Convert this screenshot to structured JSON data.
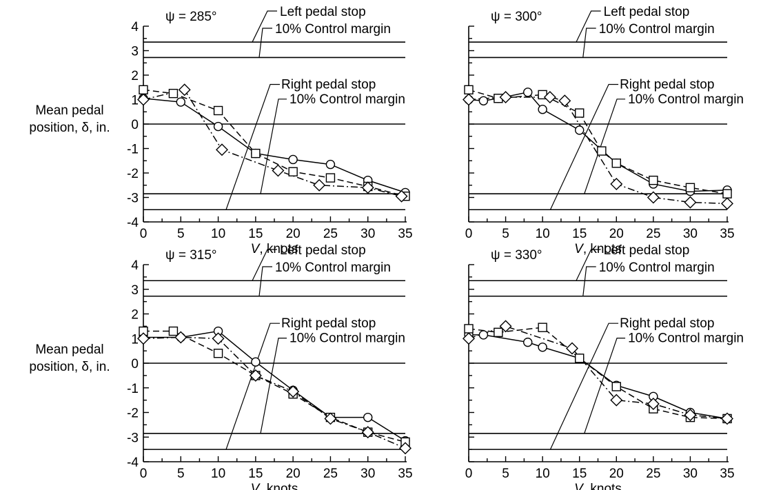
{
  "chart_data": [
    {
      "type": "line",
      "panel_title": "ψ = 285°",
      "xlabel": "V, knots",
      "ylabel": "Mean pedal position, δ, in.",
      "xlim": [
        0,
        35
      ],
      "ylim": [
        -4,
        4
      ],
      "xticks": [
        "0",
        "5",
        "10",
        "15",
        "20",
        "25",
        "30",
        "35"
      ],
      "yticks": [
        "-4",
        "-3",
        "-2",
        "-1",
        "0",
        "1",
        "2",
        "3",
        "4"
      ],
      "reference_lines": [
        {
          "label": "Left pedal stop",
          "y": 3.35
        },
        {
          "label": "10% Control margin",
          "y": 2.72
        },
        {
          "label": "",
          "y": 0
        },
        {
          "label": "Right pedal stop",
          "y": -3.5
        },
        {
          "label": "10% Control margin",
          "y": -2.85
        }
      ],
      "series": [
        {
          "marker": "circle",
          "line": "solid",
          "x": [
            0,
            5,
            10,
            15,
            20,
            25,
            30,
            35
          ],
          "y": [
            1.05,
            0.9,
            -0.1,
            -1.2,
            -1.45,
            -1.65,
            -2.3,
            -2.8
          ]
        },
        {
          "marker": "square",
          "line": "dashed",
          "x": [
            0,
            4,
            10,
            15,
            20,
            25,
            30,
            35
          ],
          "y": [
            1.4,
            1.25,
            0.55,
            -1.2,
            -1.95,
            -2.2,
            -2.55,
            -2.95
          ]
        },
        {
          "marker": "diamond",
          "line": "dashdot",
          "x": [
            0,
            5.5,
            10.5,
            18,
            23.5,
            30,
            34.5
          ],
          "y": [
            1.0,
            1.4,
            -1.05,
            -1.9,
            -2.5,
            -2.6,
            -2.95
          ]
        }
      ]
    },
    {
      "type": "line",
      "panel_title": "ψ = 300°",
      "xlabel": "V, knots",
      "ylabel": "",
      "xlim": [
        0,
        35
      ],
      "ylim": [
        -4,
        4
      ],
      "xticks": [
        "0",
        "5",
        "10",
        "15",
        "20",
        "25",
        "30",
        "35"
      ],
      "yticks": [],
      "reference_lines": [
        {
          "label": "Left pedal stop",
          "y": 3.35
        },
        {
          "label": "10% Control margin",
          "y": 2.72
        },
        {
          "label": "",
          "y": 0
        },
        {
          "label": "Right pedal stop",
          "y": -3.5
        },
        {
          "label": "10% Control margin",
          "y": -2.85
        }
      ],
      "series": [
        {
          "marker": "circle",
          "line": "solid",
          "x": [
            0,
            2,
            4,
            8,
            10,
            15,
            20,
            25,
            30,
            35
          ],
          "y": [
            1.0,
            0.95,
            1.05,
            1.3,
            0.6,
            -0.25,
            -1.6,
            -2.45,
            -2.75,
            -2.7
          ]
        },
        {
          "marker": "square",
          "line": "dashed",
          "x": [
            0,
            4,
            10,
            15,
            18,
            20,
            25,
            30,
            35
          ],
          "y": [
            1.4,
            1.05,
            1.2,
            0.45,
            -1.1,
            -1.6,
            -2.3,
            -2.6,
            -2.85
          ]
        },
        {
          "marker": "diamond",
          "line": "dashdot",
          "x": [
            0,
            5,
            11,
            13,
            20,
            25,
            30,
            35
          ],
          "y": [
            1.0,
            1.1,
            1.1,
            0.95,
            -2.45,
            -3.0,
            -3.2,
            -3.25
          ]
        }
      ]
    },
    {
      "type": "line",
      "panel_title": "ψ = 315°",
      "xlabel": "V, knots",
      "ylabel": "Mean pedal position, δ, in.",
      "xlim": [
        0,
        35
      ],
      "ylim": [
        -4,
        4
      ],
      "xticks": [
        "0",
        "5",
        "10",
        "15",
        "20",
        "25",
        "30",
        "35"
      ],
      "yticks": [
        "-4",
        "-3",
        "-2",
        "-1",
        "0",
        "1",
        "2",
        "3",
        "4"
      ],
      "reference_lines": [
        {
          "label": "Left pedal stop",
          "y": 3.35
        },
        {
          "label": "10% Control margin",
          "y": 2.72
        },
        {
          "label": "",
          "y": 0
        },
        {
          "label": "Right pedal stop",
          "y": -3.5
        },
        {
          "label": "10% Control margin",
          "y": -2.85
        }
      ],
      "series": [
        {
          "marker": "circle",
          "line": "solid",
          "x": [
            0,
            5,
            10,
            15,
            20,
            25,
            30,
            35
          ],
          "y": [
            1.05,
            1.05,
            1.3,
            0.05,
            -1.1,
            -2.2,
            -2.2,
            -3.15
          ]
        },
        {
          "marker": "square",
          "line": "dashed",
          "x": [
            0,
            4,
            10,
            15,
            20,
            25,
            30,
            35
          ],
          "y": [
            1.3,
            1.3,
            0.4,
            -0.5,
            -1.25,
            -2.2,
            -2.8,
            -3.2
          ]
        },
        {
          "marker": "diamond",
          "line": "dashdot",
          "x": [
            0,
            5,
            10,
            15,
            20,
            25,
            30,
            35
          ],
          "y": [
            1.0,
            1.05,
            1.0,
            -0.5,
            -1.15,
            -2.25,
            -2.8,
            -3.45
          ]
        }
      ]
    },
    {
      "type": "line",
      "panel_title": "ψ = 330°",
      "xlabel": "V, knots",
      "ylabel": "",
      "xlim": [
        0,
        35
      ],
      "ylim": [
        -4,
        4
      ],
      "xticks": [
        "0",
        "5",
        "10",
        "15",
        "20",
        "25",
        "30",
        "35"
      ],
      "yticks": [],
      "reference_lines": [
        {
          "label": "Left pedal stop",
          "y": 3.35
        },
        {
          "label": "10% Control margin",
          "y": 2.72
        },
        {
          "label": "",
          "y": 0
        },
        {
          "label": "Right pedal stop",
          "y": -3.5
        },
        {
          "label": "10% Control margin",
          "y": -2.85
        }
      ],
      "series": [
        {
          "marker": "circle",
          "line": "solid",
          "x": [
            0,
            2,
            8,
            10,
            15,
            20,
            25,
            30,
            35
          ],
          "y": [
            1.15,
            1.15,
            0.85,
            0.65,
            0.2,
            -0.9,
            -1.35,
            -2.0,
            -2.25
          ]
        },
        {
          "marker": "square",
          "line": "dashed",
          "x": [
            0,
            4,
            10,
            15,
            20,
            25,
            30,
            35
          ],
          "y": [
            1.4,
            1.25,
            1.45,
            0.2,
            -0.95,
            -1.85,
            -2.2,
            -2.25
          ]
        },
        {
          "marker": "diamond",
          "line": "dashdot",
          "x": [
            0,
            5,
            14,
            20,
            25,
            30,
            35
          ],
          "y": [
            1.0,
            1.5,
            0.6,
            -1.5,
            -1.65,
            -2.1,
            -2.25
          ]
        }
      ]
    }
  ]
}
